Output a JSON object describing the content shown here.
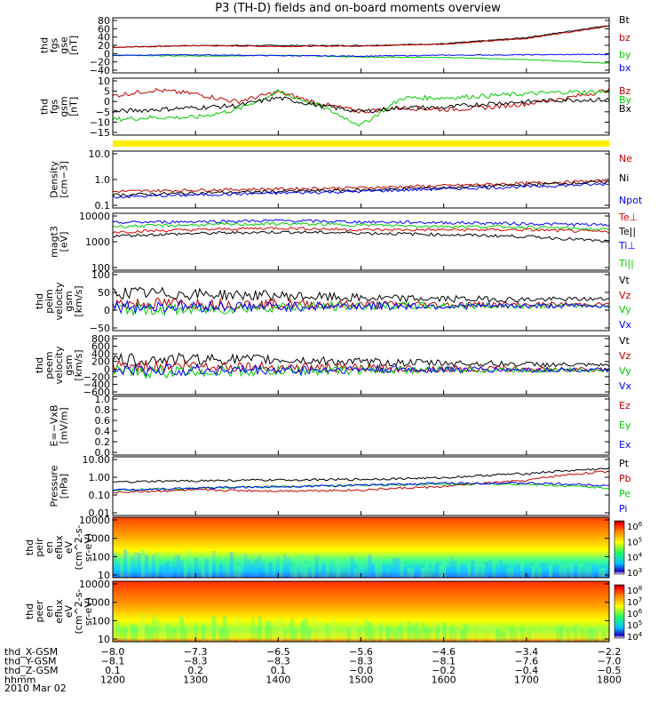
{
  "title": "P3 (TH-D) fields and on-board moments overview",
  "chart_data": [
    {
      "panel": "fgs_gse",
      "type": "line",
      "ylabel": [
        "thd",
        "fgs",
        "gse",
        "[nT]"
      ],
      "yticks": [
        "80",
        "60",
        "40",
        "20",
        "0",
        "−20",
        "−40"
      ],
      "ylim": [
        -40,
        85
      ],
      "x": [
        1200,
        1300,
        1400,
        1500,
        1600,
        1700,
        1800
      ],
      "series": [
        {
          "name": "Bt",
          "color": "#000000",
          "values": [
            18,
            22,
            22,
            22,
            26,
            40,
            68
          ]
        },
        {
          "name": "bz",
          "color": "#c00000",
          "values": [
            18,
            22,
            20,
            21,
            25,
            38,
            66
          ]
        },
        {
          "name": "by",
          "color": "#00cc00",
          "values": [
            0,
            -2,
            0,
            -4,
            -5,
            -10,
            -18
          ]
        },
        {
          "name": "bx",
          "color": "#0000ff",
          "values": [
            0,
            1,
            -1,
            -2,
            0,
            1,
            2
          ]
        }
      ]
    },
    {
      "panel": "fgs_gsm",
      "type": "line",
      "ylabel": [
        "thd",
        "fgs",
        "gsm",
        "[nT]"
      ],
      "yticks": [
        "10",
        "5",
        "0",
        "−5",
        "−10",
        "−15"
      ],
      "ylim": [
        -17,
        12
      ],
      "x": [
        1200,
        1250,
        1300,
        1350,
        1400,
        1450,
        1500,
        1550,
        1600,
        1650,
        1700,
        1750,
        1800
      ],
      "series": [
        {
          "name": "Bz",
          "color": "#c00000",
          "values": [
            3,
            6,
            4,
            0,
            5,
            -1,
            -5,
            -3,
            -4,
            -3,
            -1,
            2,
            6
          ]
        },
        {
          "name": "By",
          "color": "#00cc00",
          "values": [
            -9,
            -8,
            -8,
            -4,
            5,
            -2,
            -12,
            2,
            2,
            3,
            4,
            5,
            5
          ]
        },
        {
          "name": "Bx",
          "color": "#000000",
          "values": [
            -5,
            -4,
            -3,
            -2,
            2,
            -2,
            -5,
            -3,
            -3,
            -1,
            0,
            1,
            1
          ]
        }
      ]
    },
    {
      "panel": "density",
      "type": "line",
      "ylabel": [
        "Density",
        "[cm−3]"
      ],
      "yticks": [
        "10.0",
        "1.0",
        "0.1"
      ],
      "ylim": [
        0.1,
        12
      ],
      "log": true,
      "x": [
        1200,
        1300,
        1400,
        1500,
        1600,
        1700,
        1800
      ],
      "series": [
        {
          "name": "Ne",
          "color": "#c00000",
          "values": [
            0.4,
            0.45,
            0.5,
            0.55,
            0.65,
            0.8,
            1.0
          ]
        },
        {
          "name": "Ni",
          "color": "#000000",
          "values": [
            0.3,
            0.35,
            0.4,
            0.45,
            0.55,
            0.7,
            0.9
          ]
        },
        {
          "name": "Npot",
          "color": "#0000ff",
          "values": [
            0.25,
            0.3,
            0.35,
            0.4,
            0.5,
            0.6,
            0.75
          ]
        }
      ]
    },
    {
      "panel": "temperature",
      "type": "line",
      "ylabel": [
        "magt3",
        "[eV]"
      ],
      "yticks": [
        "10000",
        "1000",
        "100"
      ],
      "ylim": [
        100,
        12000
      ],
      "log": true,
      "x": [
        1200,
        1300,
        1400,
        1500,
        1600,
        1700,
        1800
      ],
      "series": [
        {
          "name": "Te⊥",
          "color": "#e00000",
          "values": [
            2500,
            3000,
            3500,
            3000,
            3000,
            3000,
            2500
          ]
        },
        {
          "name": "Te||",
          "color": "#000000",
          "values": [
            1800,
            2200,
            2500,
            2300,
            2000,
            1700,
            1100
          ]
        },
        {
          "name": "Ti⊥",
          "color": "#0000ff",
          "values": [
            5500,
            6000,
            6500,
            5800,
            5500,
            5000,
            4500
          ]
        },
        {
          "name": "Ti||",
          "color": "#00cc00",
          "values": [
            4000,
            4500,
            5000,
            4500,
            4000,
            3800,
            3000
          ]
        }
      ]
    },
    {
      "panel": "peim_velocity",
      "type": "line",
      "ylabel": [
        "thd",
        "peim",
        "velocity",
        "gsm",
        "[km/s]"
      ],
      "yticks": [
        "100",
        "50",
        "0",
        "−50"
      ],
      "ylim": [
        -80,
        105
      ],
      "x": [
        1200,
        1300,
        1400,
        1500,
        1600,
        1700,
        1800
      ],
      "series": [
        {
          "name": "Vt",
          "color": "#000000",
          "values": [
            40,
            35,
            30,
            22,
            20,
            18,
            20
          ]
        },
        {
          "name": "Vz",
          "color": "#c00000",
          "values": [
            5,
            5,
            3,
            2,
            2,
            2,
            3
          ]
        },
        {
          "name": "Vy",
          "color": "#00cc00",
          "values": [
            -10,
            -15,
            -5,
            -3,
            -2,
            -2,
            -1
          ]
        },
        {
          "name": "Vx",
          "color": "#0000ff",
          "values": [
            -5,
            -3,
            -5,
            -2,
            -3,
            -2,
            -2
          ]
        }
      ]
    },
    {
      "panel": "peem_velocity",
      "type": "line",
      "ylabel": [
        "thd",
        "peem",
        "velocity",
        "gsm",
        "[km/s]"
      ],
      "yticks": [
        "800",
        "600",
        "400",
        "200",
        "0",
        "−200",
        "−400",
        "−600"
      ],
      "ylim": [
        -600,
        850
      ],
      "x": [
        1200,
        1300,
        1400,
        1500,
        1600,
        1700,
        1800
      ],
      "series": [
        {
          "name": "Vt",
          "color": "#000000",
          "values": [
            250,
            280,
            260,
            200,
            180,
            150,
            120
          ]
        },
        {
          "name": "Vz",
          "color": "#c00000",
          "values": [
            100,
            120,
            80,
            50,
            40,
            30,
            20
          ]
        },
        {
          "name": "Vy",
          "color": "#00cc00",
          "values": [
            -50,
            -30,
            -20,
            0,
            10,
            10,
            10
          ]
        },
        {
          "name": "Vx",
          "color": "#0000ff",
          "values": [
            0,
            10,
            0,
            20,
            20,
            10,
            10
          ]
        }
      ]
    },
    {
      "panel": "efield",
      "type": "line",
      "ylabel": [
        "E=−VxB",
        "[mV/m]"
      ],
      "yticks": [
        "1.0",
        "0.8",
        "0.6",
        "0.4",
        "0.2",
        "0.0"
      ],
      "ylim": [
        0,
        1
      ],
      "x": [],
      "series": [
        {
          "name": "Ez",
          "color": "#c00000",
          "values": []
        },
        {
          "name": "Ey",
          "color": "#00cc00",
          "values": []
        },
        {
          "name": "Ex",
          "color": "#0000ff",
          "values": []
        }
      ]
    },
    {
      "panel": "pressure",
      "type": "line",
      "ylabel": [
        "Pressure",
        "[nPa]"
      ],
      "yticks": [
        "10.00",
        "1.00",
        "0.10",
        "0.01"
      ],
      "ylim": [
        0.01,
        10
      ],
      "log": true,
      "x": [
        1200,
        1300,
        1400,
        1500,
        1600,
        1700,
        1800
      ],
      "series": [
        {
          "name": "Pt",
          "color": "#000000",
          "values": [
            0.5,
            0.6,
            0.65,
            0.7,
            0.85,
            1.4,
            2.5
          ]
        },
        {
          "name": "Pb",
          "color": "#c00000",
          "values": [
            0.15,
            0.2,
            0.18,
            0.2,
            0.3,
            0.6,
            1.8
          ]
        },
        {
          "name": "Pe",
          "color": "#00cc00",
          "values": [
            0.2,
            0.25,
            0.3,
            0.35,
            0.4,
            0.4,
            0.25
          ]
        },
        {
          "name": "Pi",
          "color": "#0000ff",
          "values": [
            0.2,
            0.25,
            0.3,
            0.35,
            0.45,
            0.45,
            0.35
          ]
        }
      ]
    },
    {
      "panel": "peir_eflux",
      "type": "heatmap",
      "ylabel": [
        "thd",
        "peir",
        "en",
        "eflux",
        "eV",
        "(cm^2-s-",
        "sr-eV)"
      ],
      "yticks": [
        "10000",
        "1000",
        "100",
        "10"
      ],
      "ylim": [
        8,
        25000
      ],
      "colorbar": {
        "ticks": [
          "10^6",
          "10^5",
          "10^4",
          "10^3"
        ]
      }
    },
    {
      "panel": "peer_eflux",
      "type": "heatmap",
      "ylabel": [
        "thd",
        "peer",
        "en",
        "eflux",
        "eV",
        "(cm^2-s-",
        "sr-eV)"
      ],
      "yticks": [
        "10000",
        "1000",
        "100",
        "10"
      ],
      "ylim": [
        8,
        25000
      ],
      "colorbar": {
        "ticks": [
          "10^8",
          "10^7",
          "10^6",
          "10^5",
          "10^4"
        ]
      }
    }
  ],
  "xaxis": {
    "x": [
      1200,
      1300,
      1400,
      1500,
      1600,
      1700,
      1800
    ],
    "rows": [
      {
        "label": "thd_X-GSM",
        "values": [
          "−8.0",
          "−7.3",
          "−6.5",
          "−5.6",
          "−4.6",
          "−3.4",
          "−2.2"
        ]
      },
      {
        "label": "thd_Y-GSM",
        "values": [
          "−8.1",
          "−8.3",
          "−8.3",
          "−8.3",
          "−8.1",
          "−7.6",
          "−7.0"
        ]
      },
      {
        "label": "thd_Z-GSM",
        "values": [
          "0.1",
          "0.2",
          "0.1",
          "−0.0",
          "−0.2",
          "−0.4",
          "−0.5"
        ]
      },
      {
        "label": "hhmm",
        "values": [
          "1200",
          "1300",
          "1400",
          "1500",
          "1600",
          "1700",
          "1800"
        ]
      }
    ],
    "date": "2010 Mar 02"
  }
}
